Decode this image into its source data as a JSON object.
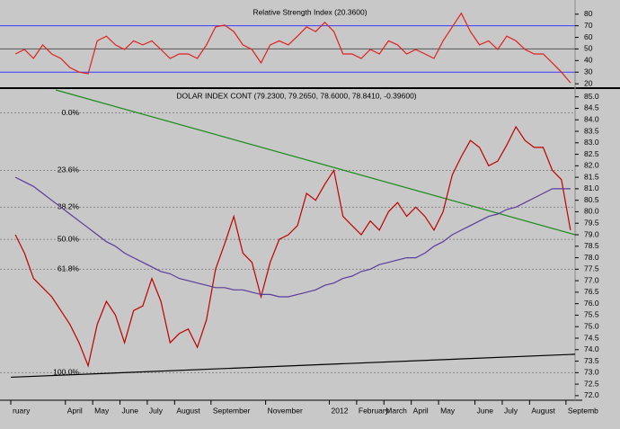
{
  "chart_data": [
    {
      "type": "line",
      "title": "Relative Strength Index (20.3600)",
      "ylim": [
        17,
        86
      ],
      "yticks": [
        20,
        30,
        40,
        50,
        60,
        70,
        80
      ],
      "levels": [
        {
          "value": 70,
          "color": "#3a3aff"
        },
        {
          "value": 50,
          "color": "#555555"
        },
        {
          "value": 30,
          "color": "#3a3aff"
        }
      ],
      "series": [
        {
          "color": "#e02020",
          "values": [
            45.7,
            49.6,
            41.8,
            53.5,
            45.7,
            41.8,
            34,
            30,
            28.6,
            57,
            61,
            53.5,
            49.6,
            57,
            53.5,
            57,
            49.6,
            41.8,
            45.7,
            45.7,
            41.8,
            53.5,
            69,
            70.6,
            65,
            53.5,
            49.6,
            38,
            53.5,
            57,
            53.5,
            61,
            69,
            65,
            73,
            65,
            45.7,
            45.7,
            41.8,
            49.6,
            45.7,
            57,
            53.5,
            45.7,
            49.6,
            45.7,
            41.8,
            57,
            69,
            80.8,
            65,
            53.5,
            57,
            49.6,
            61,
            57,
            49.6,
            45.7,
            45.7,
            38,
            30,
            20.8
          ]
        }
      ]
    },
    {
      "type": "line",
      "title": "DOLAR INDEX CONT (79.2300, 79.2650, 78.6000, 78.8410, -0.39600)",
      "categories": [
        "ruary",
        null,
        null,
        null,
        null,
        null,
        "April",
        null,
        null,
        "May",
        null,
        null,
        "June",
        null,
        null,
        "July",
        null,
        null,
        "August",
        null,
        null,
        null,
        "September",
        null,
        null,
        null,
        null,
        null,
        "November",
        null,
        null,
        null,
        null,
        null,
        null,
        "2012",
        null,
        null,
        "February",
        null,
        null,
        "March",
        null,
        null,
        "April",
        null,
        null,
        "May",
        null,
        null,
        null,
        "June",
        null,
        null,
        "July",
        null,
        null,
        "August",
        null,
        null,
        null,
        "Septemb"
      ],
      "ylim": [
        71.8,
        85.3
      ],
      "yticks": [
        {
          "value": 72,
          "label": "72.0"
        },
        {
          "value": 72.5,
          "label": "72.5"
        },
        {
          "value": 73,
          "label": "73.0"
        },
        {
          "value": 73.5,
          "label": "73.5"
        },
        {
          "value": 74,
          "label": "74.0"
        },
        {
          "value": 74.5,
          "label": "74.5"
        },
        {
          "value": 75,
          "label": "75.0"
        },
        {
          "value": 75.5,
          "label": "75.5"
        },
        {
          "value": 76,
          "label": "76.0"
        },
        {
          "value": 76.5,
          "label": "76.5"
        },
        {
          "value": 77,
          "label": "77.0"
        },
        {
          "value": 77.5,
          "label": "77.5"
        },
        {
          "value": 78,
          "label": "78.0"
        },
        {
          "value": 78.5,
          "label": "78.5"
        },
        {
          "value": 79,
          "label": "79.0"
        },
        {
          "value": 79.5,
          "label": "79.5"
        },
        {
          "value": 80,
          "label": "80.0"
        },
        {
          "value": 80.5,
          "label": "80.5"
        },
        {
          "value": 81,
          "label": "81.0"
        },
        {
          "value": 81.5,
          "label": "81.5"
        },
        {
          "value": 82,
          "label": "82.0"
        },
        {
          "value": 82.5,
          "label": "82.5"
        },
        {
          "value": 83,
          "label": "83.0"
        },
        {
          "value": 83.5,
          "label": "83.5"
        },
        {
          "value": 84,
          "label": "84.0"
        },
        {
          "value": 84.5,
          "label": "84.5"
        },
        {
          "value": 85,
          "label": "85.0"
        }
      ],
      "fib_levels": [
        {
          "value": 84.3,
          "label": "0.0%"
        },
        {
          "value": 81.8,
          "label": "23.6%"
        },
        {
          "value": 80.2,
          "label": "38.2%"
        },
        {
          "value": 78.8,
          "label": "50.0%"
        },
        {
          "value": 77.5,
          "label": "61.8%"
        },
        {
          "value": 73.0,
          "label": "100.0%"
        }
      ],
      "trendlines": [
        {
          "color": "#1a8a1a",
          "x": [
            4.44,
            61.5
          ],
          "y": [
            85.3,
            79.0
          ]
        },
        {
          "color": "#000000",
          "x": [
            -0.5,
            61.5
          ],
          "y": [
            72.8,
            73.8
          ]
        }
      ],
      "series": [
        {
          "color": "#c00000",
          "values": [
            79.0,
            78.2,
            77.1,
            76.7,
            76.3,
            75.7,
            75.1,
            74.3,
            73.3,
            75.1,
            76.1,
            75.5,
            74.3,
            75.7,
            75.9,
            77.1,
            76.1,
            74.3,
            74.7,
            74.9,
            74.1,
            75.3,
            77.5,
            78.6,
            79.8,
            78.2,
            77.8,
            76.3,
            77.8,
            78.8,
            79.0,
            79.4,
            80.8,
            80.5,
            81.2,
            81.8,
            79.8,
            79.4,
            79.0,
            79.6,
            79.2,
            80.0,
            80.4,
            79.8,
            80.2,
            79.8,
            79.2,
            80.0,
            81.6,
            82.4,
            83.1,
            82.8,
            82.0,
            82.2,
            82.9,
            83.7,
            83.1,
            82.8,
            82.8,
            81.8,
            81.4,
            79.2
          ]
        },
        {
          "color": "#5a3c9a",
          "values": [
            81.5,
            81.3,
            81.1,
            80.8,
            80.5,
            80.2,
            79.9,
            79.6,
            79.3,
            79.0,
            78.7,
            78.5,
            78.2,
            78.0,
            77.8,
            77.6,
            77.4,
            77.3,
            77.1,
            77.0,
            76.9,
            76.8,
            76.7,
            76.7,
            76.6,
            76.6,
            76.5,
            76.4,
            76.4,
            76.3,
            76.3,
            76.4,
            76.5,
            76.6,
            76.8,
            76.9,
            77.1,
            77.2,
            77.4,
            77.5,
            77.7,
            77.8,
            77.9,
            78.0,
            78.0,
            78.2,
            78.5,
            78.7,
            79.0,
            79.2,
            79.4,
            79.6,
            79.8,
            79.9,
            80.1,
            80.2,
            80.4,
            80.6,
            80.8,
            81.0,
            81.0,
            81.0
          ]
        }
      ]
    }
  ]
}
